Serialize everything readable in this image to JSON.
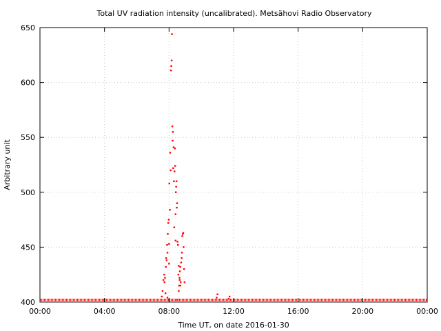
{
  "chart_data": {
    "type": "scatter",
    "title": "Total UV radiation intensity (uncalibrated). Metsähovi Radio Observatory",
    "xlabel": "Time UT, on date 2016-01-30",
    "ylabel": "Arbitrary unit",
    "xlim": [
      0,
      24
    ],
    "ylim": [
      400,
      650
    ],
    "x_ticks": [
      0,
      4,
      8,
      12,
      16,
      20,
      24
    ],
    "x_tick_labels": [
      "00:00",
      "04:00",
      "08:00",
      "12:00",
      "16:00",
      "20:00",
      "00:00"
    ],
    "y_ticks": [
      400,
      450,
      500,
      550,
      600,
      650
    ],
    "y_tick_labels": [
      "400",
      "450",
      "500",
      "550",
      "600",
      "650"
    ],
    "grid": true,
    "legend": "none",
    "marker_color": "#ff0000",
    "baseline": {
      "x_range": [
        0,
        24
      ],
      "y": 402
    },
    "series": [
      {
        "name": "",
        "x": [
          7.55,
          7.6,
          7.65,
          7.7,
          7.72,
          7.75,
          7.78,
          7.8,
          7.82,
          7.85,
          7.88,
          7.9,
          7.92,
          7.95,
          7.98,
          8.0,
          8.02,
          8.05,
          8.07,
          8.1,
          8.12,
          8.14,
          8.16,
          8.18,
          8.2,
          8.22,
          8.24,
          8.26,
          8.28,
          8.3,
          8.32,
          8.34,
          8.36,
          8.38,
          8.4,
          8.42,
          8.44,
          8.46,
          8.48,
          8.5,
          8.52,
          8.55,
          8.58,
          8.6,
          8.62,
          8.65,
          8.67,
          8.7,
          8.72,
          8.75,
          8.78,
          8.8,
          8.82,
          8.85,
          8.88,
          8.9,
          8.93,
          8.96,
          8.6,
          8.5,
          8.7,
          8.66,
          8.4,
          7.9,
          8.0,
          10.95,
          11.0,
          11.7,
          11.75
        ],
        "y": [
          405,
          410,
          420,
          425,
          418,
          422,
          408,
          432,
          440,
          438,
          452,
          445,
          462,
          472,
          475,
          453,
          508,
          484,
          536,
          520,
          611,
          615,
          620,
          644,
          560,
          547,
          555,
          522,
          541,
          510,
          468,
          519,
          540,
          524,
          480,
          500,
          505,
          510,
          486,
          490,
          455,
          452,
          425,
          433,
          415,
          422,
          428,
          432,
          418,
          436,
          440,
          445,
          460,
          462,
          463,
          450,
          430,
          418,
          410,
          402,
          415,
          420,
          456,
          404,
          435,
          404,
          407,
          403,
          405
        ]
      }
    ]
  }
}
